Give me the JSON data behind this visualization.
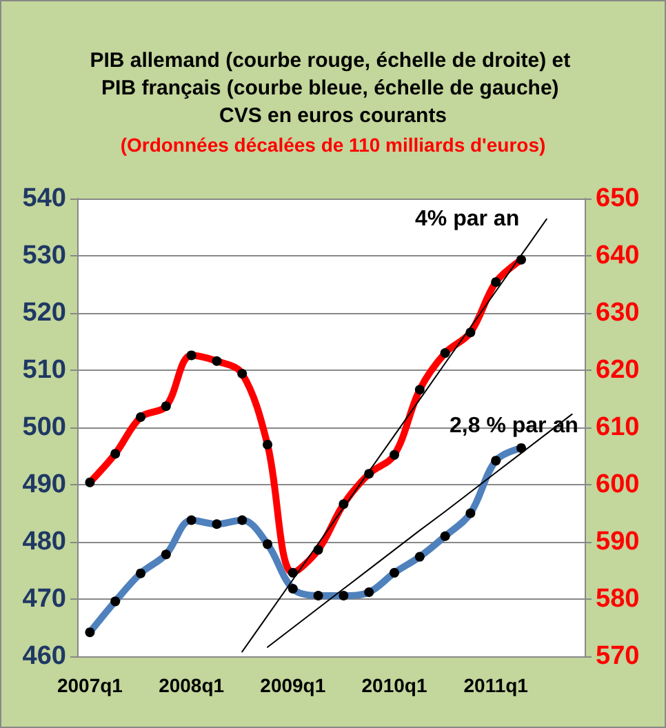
{
  "chart_data": {
    "type": "line",
    "title": "PIB allemand (courbe rouge, échelle de droite) et PIB français (courbe bleue, échelle de gauche) CVS en euros courants",
    "subtitle": "(Ordonnées décalées de 110 milliards d'euros)",
    "categories": [
      "2007q1",
      null,
      null,
      null,
      "2008q1",
      null,
      null,
      null,
      "2009q1",
      null,
      null,
      null,
      "2010q1",
      null,
      null,
      null,
      "2011q1",
      null,
      null,
      null
    ],
    "series": [
      {
        "color": "#ff0000",
        "axis": "y2",
        "values": [
          600.4,
          605.4,
          611.8,
          613.7,
          622.6,
          621.6,
          619.4,
          607.0,
          584.6,
          588.6,
          596.6,
          601.9,
          605.2,
          616.6,
          623.0,
          626.6,
          635.4,
          639.3,
          null,
          null
        ]
      },
      {
        "color": "#4f81bd",
        "values": [
          464.2,
          469.6,
          474.5,
          477.8,
          483.8,
          483.1,
          483.8,
          479.6,
          471.8,
          470.6,
          470.6,
          471.2,
          474.6,
          477.4,
          481.0,
          485.0,
          494.2,
          496.4,
          null,
          null
        ]
      },
      {
        "color": "#000000",
        "axis": "y2",
        "marker": "none",
        "values": [
          null,
          null,
          null,
          null,
          null,
          null,
          570.8,
          577.1,
          583.4,
          589.7,
          596.0,
          602.3,
          608.6,
          614.9,
          621.2,
          627.5,
          633.8,
          640.1,
          646.4,
          null
        ]
      },
      {
        "color": "#000000",
        "marker": "none",
        "values": [
          null,
          null,
          null,
          null,
          null,
          null,
          null,
          461.6,
          465.0,
          468.4,
          471.8,
          475.2,
          478.6,
          482.0,
          485.3,
          488.7,
          492.1,
          495.5,
          498.9,
          502.3
        ]
      }
    ],
    "ylim": [
      460,
      540
    ],
    "yticks": [
      460,
      470,
      480,
      490,
      500,
      510,
      520,
      530,
      540
    ],
    "y2lim": [
      570,
      650
    ],
    "y2ticks": [
      570,
      580,
      590,
      600,
      610,
      620,
      630,
      640,
      650
    ],
    "annotations": [
      "4% par an",
      "2,8 % par an"
    ],
    "grid": "y",
    "marker": "circle"
  }
}
